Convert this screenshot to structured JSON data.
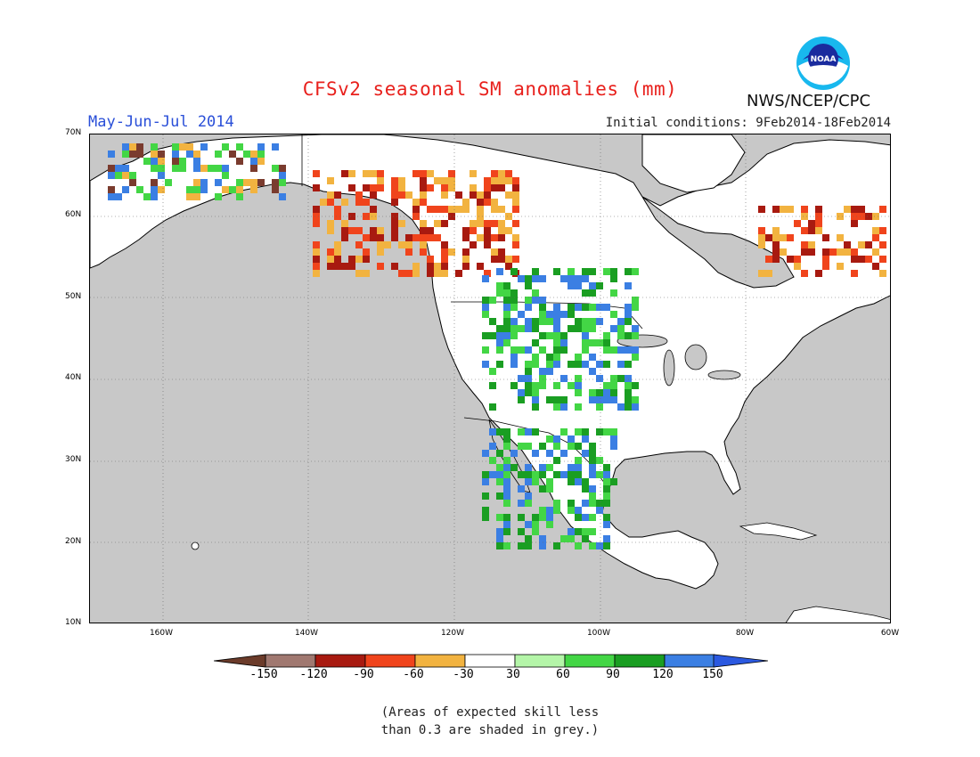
{
  "header": {
    "title": "CFSv2 seasonal SM anomalies (mm)",
    "period": "May-Jun-Jul 2014",
    "initial_conditions": "Initial conditions: 9Feb2014-18Feb2014",
    "agency": "NWS/NCEP/CPC",
    "logo_text": "NOAA"
  },
  "map": {
    "lat_labels": [
      "70N",
      "60N",
      "50N",
      "40N",
      "30N",
      "20N",
      "10N"
    ],
    "lon_labels": [
      "160W",
      "140W",
      "120W",
      "100W",
      "80W",
      "60W"
    ],
    "region": "North America",
    "background_color": "#c8c8c8",
    "anomaly_patches": [
      {
        "area": "Alaska interior",
        "category": "mixed",
        "colors": [
          "#3b7fe3",
          "#43d645",
          "#f2b340",
          "#7a3b2e"
        ]
      },
      {
        "area": "Western Canada",
        "category": "dry",
        "colors": [
          "#f2b340",
          "#f0441c",
          "#a81a10"
        ]
      },
      {
        "area": "Northern Plains",
        "category": "wet",
        "colors": [
          "#3b7fe3",
          "#43d645",
          "#1a9e22"
        ]
      },
      {
        "area": "Mexico",
        "category": "wet",
        "colors": [
          "#3b7fe3",
          "#43d645",
          "#1a9e22"
        ]
      },
      {
        "area": "Eastern Canada",
        "category": "dry",
        "colors": [
          "#f2b340",
          "#f0441c",
          "#a81a10"
        ]
      }
    ]
  },
  "colorbar": {
    "labels": [
      "-150",
      "-120",
      "-90",
      "-60",
      "-30",
      "30",
      "60",
      "90",
      "120",
      "150"
    ],
    "colors": [
      "#6b3b2a",
      "#a07870",
      "#a81a10",
      "#f0441c",
      "#f2b340",
      "#ffffff",
      "#b4f5a8",
      "#43d645",
      "#1a9e22",
      "#3b7fe3",
      "#2b59e0"
    ]
  },
  "note": {
    "line1": "(Areas of expected skill less",
    "line2": "than 0.3 are shaded in grey.)"
  }
}
